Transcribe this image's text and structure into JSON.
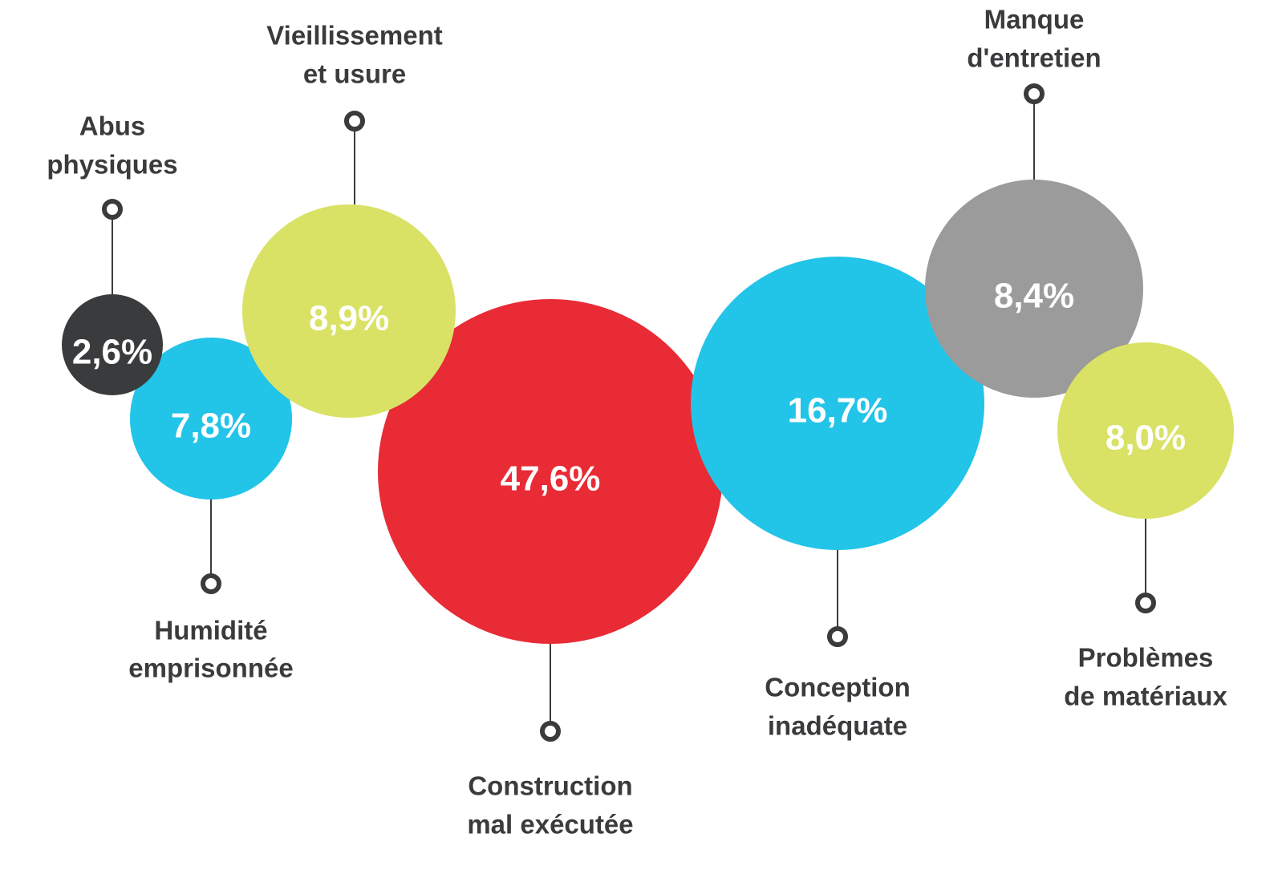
{
  "chart_data": {
    "type": "bubble",
    "categories": [
      [
        "Abus",
        "physiques"
      ],
      [
        "Humidité",
        "emprisonnée"
      ],
      [
        "Vieillissement",
        "et usure"
      ],
      [
        "Construction",
        "mal exécutée"
      ],
      [
        "Conception",
        "inadéquate"
      ],
      [
        "Manque",
        "d'entretien"
      ],
      [
        "Problèmes",
        "de matériaux"
      ]
    ],
    "values": [
      2.6,
      7.8,
      8.9,
      47.6,
      16.7,
      8.4,
      8.0
    ],
    "value_labels": [
      "2,6%",
      "7,8%",
      "8,9%",
      "47,6%",
      "16,7%",
      "8,4%",
      "8,0%"
    ],
    "colors": [
      "#3a3b3d",
      "#22c4e8",
      "#d9e264",
      "#e92b36",
      "#22c4e8",
      "#9b9b9b",
      "#d9e264"
    ]
  }
}
